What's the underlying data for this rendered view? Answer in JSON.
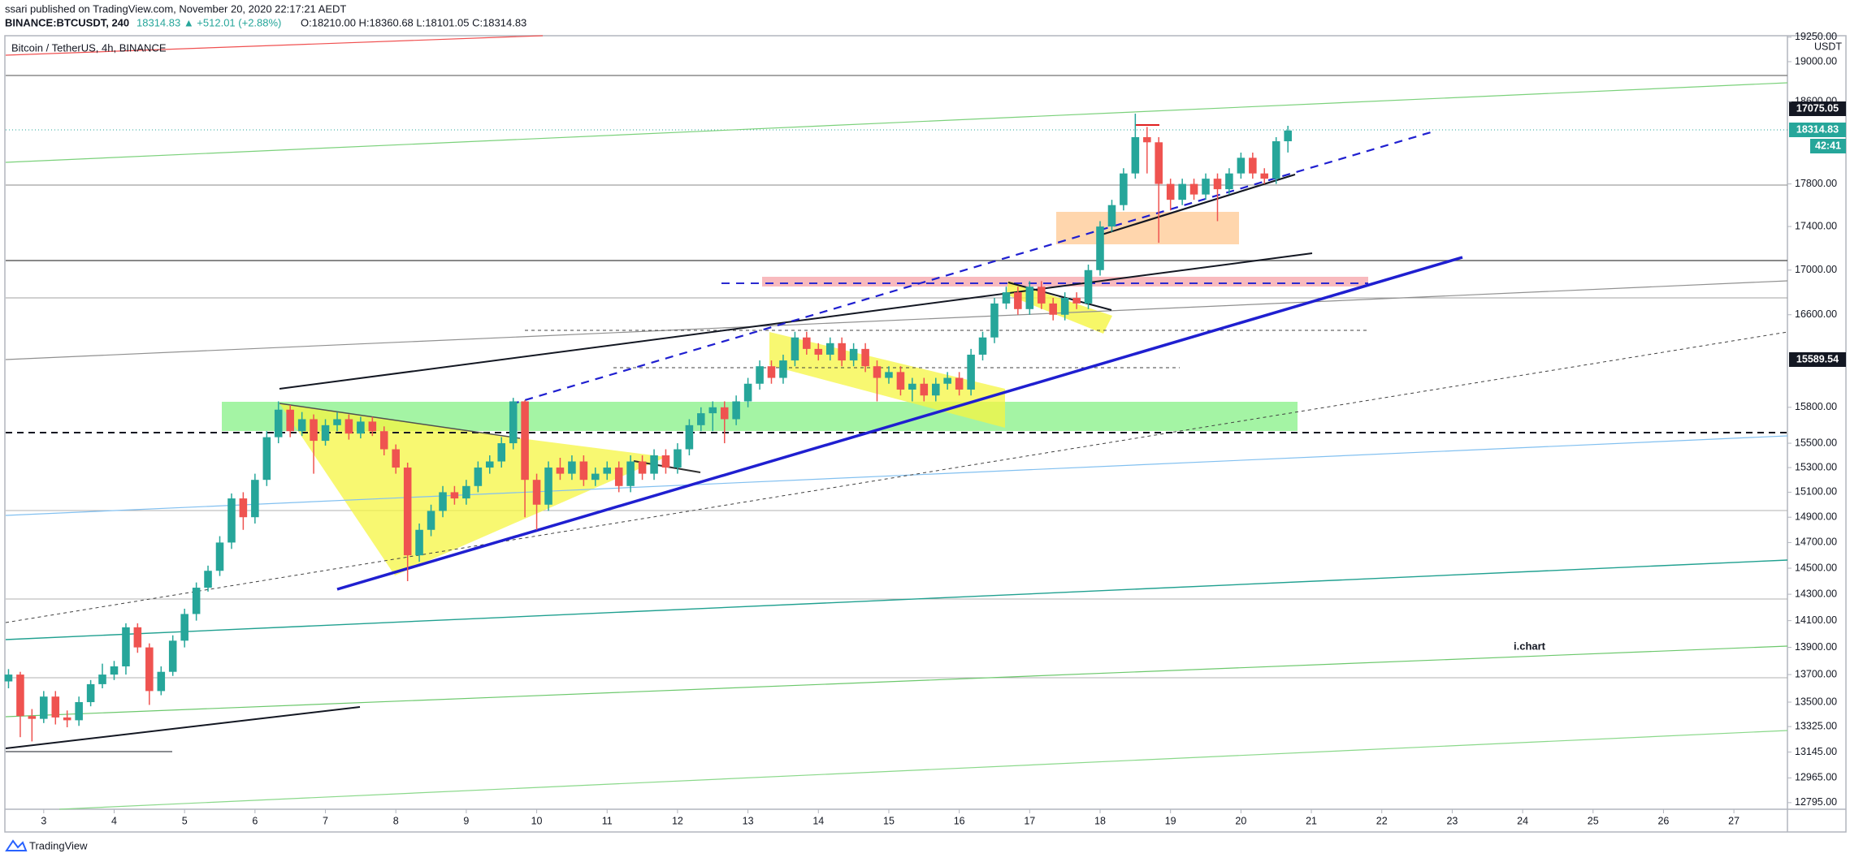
{
  "header": {
    "publisher": "ssari published on TradingView.com, November 20, 2020 22:17:21 AEDT",
    "symbol": "BINANCE:BTCUSDT, 240",
    "change": "18314.83 ▲ +512.01 (+2.88%)",
    "ohlc": "O:18210.00 H:18360.68 L:18101.05 C:18314.83"
  },
  "footer": {
    "brand": "TradingView"
  },
  "chart_data": {
    "type": "candlestick",
    "title": "Bitcoin / TetherUS, 4h, BINANCE",
    "y_unit": "USDT",
    "watermark": "i.chart",
    "price_labels": [
      "17075.05",
      "18314.83",
      "15589.54"
    ],
    "countdown": "42:41",
    "up_color": "#26a69a",
    "down_color": "#ef5350",
    "y_scale": "log",
    "x": [
      2.5,
      2.667,
      2.833,
      3,
      3.167,
      3.333,
      3.5,
      3.667,
      3.833,
      4,
      4.167,
      4.333,
      4.5,
      4.667,
      4.833,
      5,
      5.167,
      5.333,
      5.5,
      5.667,
      5.833,
      6,
      6.167,
      6.333,
      6.5,
      6.667,
      6.833,
      7,
      7.167,
      7.333,
      7.5,
      7.667,
      7.833,
      8,
      8.167,
      8.333,
      8.5,
      8.667,
      8.833,
      9,
      9.167,
      9.333,
      9.5,
      9.667,
      9.833,
      10,
      10.167,
      10.333,
      10.5,
      10.667,
      10.833,
      11,
      11.167,
      11.333,
      11.5,
      11.667,
      11.833,
      12,
      12.167,
      12.333,
      12.5,
      12.667,
      12.833,
      13,
      13.167,
      13.333,
      13.5,
      13.667,
      13.833,
      14,
      14.167,
      14.333,
      14.5,
      14.667,
      14.833,
      15,
      15.167,
      15.333,
      15.5,
      15.667,
      15.833,
      16,
      16.167,
      16.333,
      16.5,
      16.667,
      16.833,
      17,
      17.167,
      17.333,
      17.5,
      17.667,
      17.833,
      18,
      18.167,
      18.333,
      18.5,
      18.667,
      18.833,
      19,
      19.167,
      19.333,
      19.5,
      19.667,
      19.833,
      20,
      20.167,
      20.333,
      20.5,
      20.667
    ],
    "open": [
      13650,
      13700,
      13400,
      13380,
      13540,
      13390,
      13370,
      13500,
      13630,
      13700,
      13760,
      14050,
      13900,
      13580,
      13720,
      13950,
      14150,
      14350,
      14480,
      14700,
      15050,
      14900,
      15200,
      15550,
      15780,
      15600,
      15700,
      15520,
      15650,
      15700,
      15580,
      15680,
      15600,
      15450,
      15300,
      14600,
      14800,
      14950,
      15100,
      15050,
      15150,
      15300,
      15350,
      15500,
      15850,
      15200,
      15000,
      15300,
      15250,
      15350,
      15200,
      15250,
      15300,
      15150,
      15350,
      15250,
      15400,
      15300,
      15450,
      15650,
      15750,
      15800,
      15700,
      15850,
      16000,
      16150,
      16050,
      16200,
      16400,
      16300,
      16250,
      16350,
      16200,
      16300,
      16150,
      16050,
      16100,
      15950,
      16000,
      15900,
      16000,
      16050,
      15950,
      16250,
      16400,
      16700,
      16800,
      16650,
      16850,
      16700,
      16600,
      16750,
      16700,
      17000,
      17400,
      17600,
      17900,
      18250,
      18200,
      17800,
      17650,
      17800,
      17700,
      17850,
      17750,
      17900,
      18050,
      17900,
      17850,
      18210.0
    ],
    "high": [
      13740,
      13720,
      13450,
      13580,
      13580,
      13440,
      13540,
      13660,
      13780,
      13800,
      14080,
      14080,
      13930,
      13760,
      13990,
      14190,
      14390,
      14520,
      14750,
      15090,
      15100,
      15250,
      15600,
      15850,
      15820,
      15760,
      15740,
      15700,
      15760,
      15740,
      15720,
      15720,
      15640,
      15490,
      15340,
      14850,
      15000,
      15150,
      15150,
      15200,
      15350,
      15400,
      15550,
      15880,
      15860,
      15250,
      15350,
      15380,
      15400,
      15400,
      15300,
      15350,
      15350,
      15400,
      15400,
      15450,
      15450,
      15500,
      15700,
      15800,
      15850,
      15850,
      15900,
      16050,
      16200,
      16200,
      16250,
      16450,
      16450,
      16350,
      16400,
      16400,
      16350,
      16350,
      16200,
      16150,
      16150,
      16050,
      16050,
      16050,
      16100,
      16100,
      16300,
      16450,
      16750,
      16850,
      16850,
      16900,
      16900,
      16750,
      16800,
      16800,
      17050,
      17450,
      17650,
      17950,
      18480,
      18350,
      18250,
      17850,
      17850,
      17850,
      17900,
      17900,
      17950,
      18100,
      18100,
      17950,
      18250,
      18360.68
    ],
    "low": [
      13600,
      13250,
      13220,
      13350,
      13340,
      13320,
      13330,
      13470,
      13600,
      13660,
      13700,
      13860,
      13480,
      13550,
      13690,
      13900,
      14100,
      14320,
      14440,
      14650,
      14800,
      14850,
      15150,
      15500,
      15550,
      15560,
      15250,
      15480,
      15600,
      15530,
      15540,
      15560,
      15400,
      15250,
      14400,
      14550,
      14750,
      14900,
      15000,
      15000,
      15100,
      15250,
      15300,
      15450,
      14900,
      14800,
      14950,
      15200,
      15200,
      15150,
      15150,
      15200,
      15100,
      15100,
      15200,
      15200,
      15250,
      15250,
      15400,
      15600,
      15600,
      15500,
      15650,
      15800,
      15950,
      16000,
      16000,
      16150,
      16250,
      16200,
      16200,
      16150,
      16150,
      16100,
      15850,
      16000,
      15900,
      15850,
      15850,
      15850,
      15950,
      15900,
      15900,
      16200,
      16350,
      16650,
      16600,
      16600,
      16650,
      16550,
      16550,
      16650,
      16650,
      16950,
      17350,
      17550,
      17850,
      17900,
      17250,
      17550,
      17600,
      17650,
      17650,
      17450,
      17700,
      17850,
      17850,
      17800,
      17800,
      18101.05
    ],
    "close": [
      13700,
      13400,
      13380,
      13540,
      13390,
      13370,
      13500,
      13630,
      13700,
      13760,
      14050,
      13900,
      13580,
      13720,
      13950,
      14150,
      14350,
      14480,
      14700,
      15050,
      14900,
      15200,
      15550,
      15780,
      15600,
      15700,
      15520,
      15650,
      15700,
      15580,
      15680,
      15600,
      15450,
      15300,
      14600,
      14800,
      14950,
      15100,
      15050,
      15150,
      15300,
      15350,
      15500,
      15850,
      15200,
      15000,
      15300,
      15250,
      15350,
      15200,
      15250,
      15300,
      15150,
      15350,
      15250,
      15400,
      15300,
      15450,
      15650,
      15750,
      15800,
      15700,
      15850,
      16000,
      16150,
      16050,
      16200,
      16400,
      16300,
      16250,
      16350,
      16200,
      16300,
      16150,
      16050,
      16100,
      15950,
      16000,
      15900,
      16000,
      16050,
      15950,
      16250,
      16400,
      16700,
      16800,
      16650,
      16850,
      16700,
      16600,
      16750,
      16700,
      17000,
      17400,
      17600,
      17900,
      18250,
      18200,
      17800,
      17650,
      17800,
      17700,
      17850,
      17750,
      17900,
      18050,
      17900,
      17850,
      18210,
      18314.83
    ],
    "xlim": [
      2.46,
      27.76
    ],
    "xticks": [
      3,
      4,
      5,
      6,
      7,
      8,
      9,
      10,
      11,
      12,
      13,
      14,
      15,
      16,
      17,
      18,
      19,
      20,
      21,
      22,
      23,
      24,
      25,
      26,
      27
    ],
    "ylim": [
      12750,
      19265
    ],
    "yticks": [
      {
        "value": 19250,
        "label": "19250.00"
      },
      {
        "value": 19000,
        "label": "19000.00"
      },
      {
        "value": 18600,
        "label": "18600.00"
      },
      {
        "value": 17800,
        "label": "17800.00"
      },
      {
        "value": 17400,
        "label": "17400.00"
      },
      {
        "value": 17000,
        "label": "17000.00"
      },
      {
        "value": 16600,
        "label": "16600.00"
      },
      {
        "value": 15800,
        "label": "15800.00"
      },
      {
        "value": 15500,
        "label": "15500.00"
      },
      {
        "value": 15300,
        "label": "15300.00"
      },
      {
        "value": 15100,
        "label": "15100.00"
      },
      {
        "value": 14900,
        "label": "14900.00"
      },
      {
        "value": 14700,
        "label": "14700.00"
      },
      {
        "value": 14500,
        "label": "14500.00"
      },
      {
        "value": 14300,
        "label": "14300.00"
      },
      {
        "value": 14100,
        "label": "14100.00"
      },
      {
        "value": 13900,
        "label": "13900.00"
      },
      {
        "value": 13700,
        "label": "13700.00"
      },
      {
        "value": 13500,
        "label": "13500.00"
      },
      {
        "value": 13325,
        "label": "13325.00"
      },
      {
        "value": 13145,
        "label": "13145.00"
      },
      {
        "value": 12965,
        "label": "12965.00"
      },
      {
        "value": 12795,
        "label": "12795.00"
      }
    ]
  }
}
